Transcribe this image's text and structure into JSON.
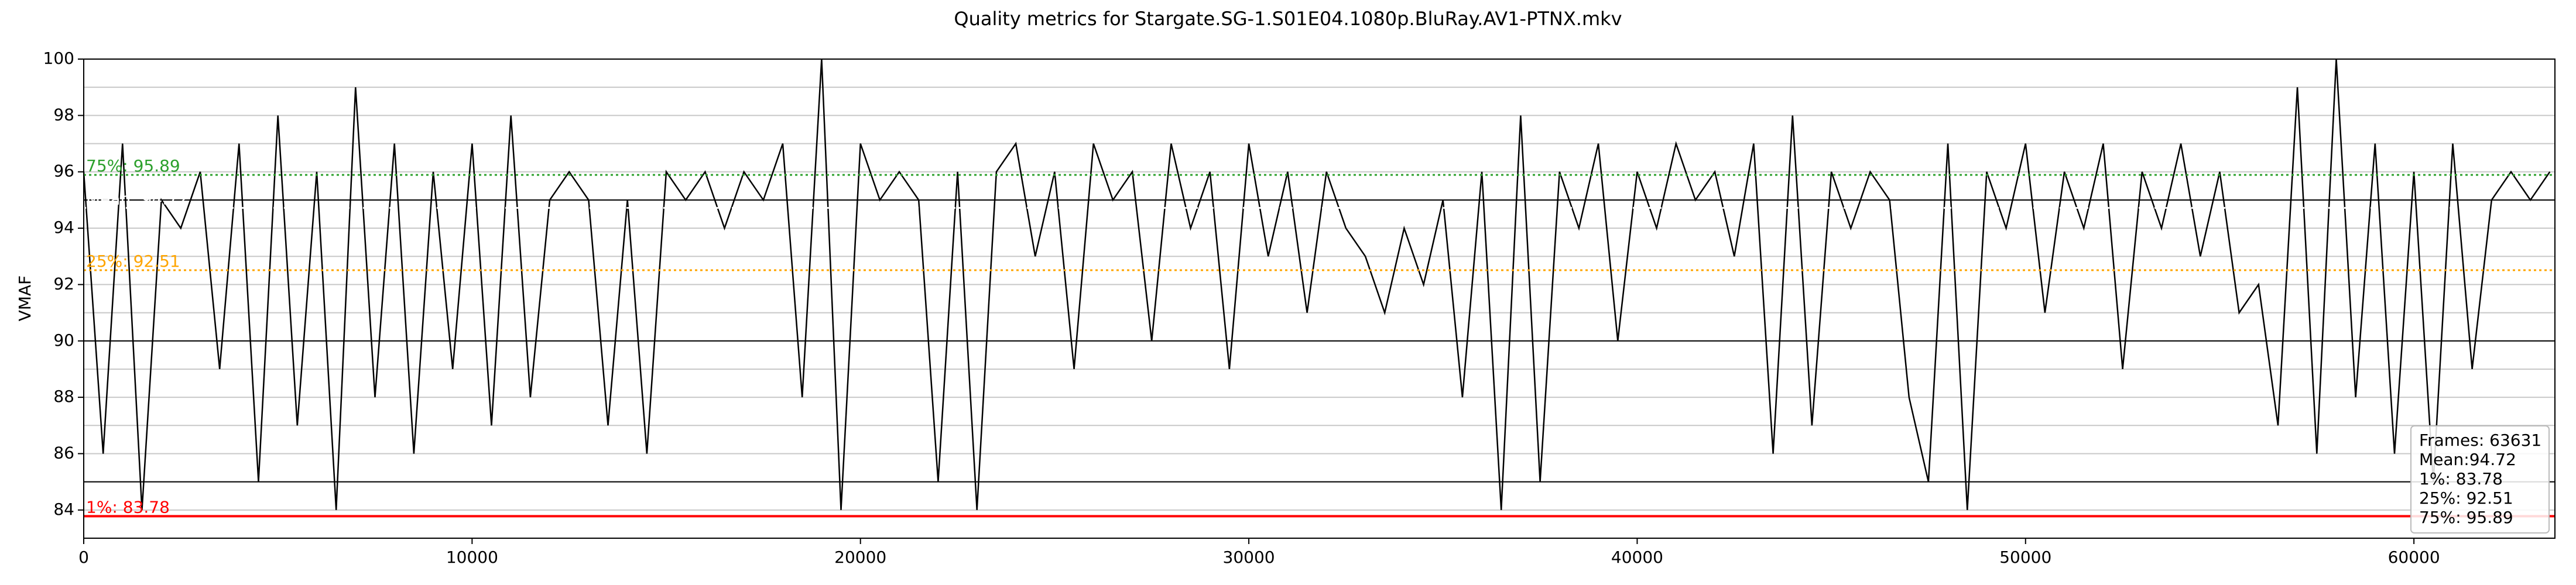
{
  "chart_data": {
    "type": "line",
    "title": "Quality metrics for Stargate.SG-1.S01E04.1080p.BluRay.AV1-PTNX.mkv",
    "y_label": "VMAF",
    "xlim": [
      0,
      63631
    ],
    "ylim": [
      83,
      100
    ],
    "xticks": [
      0,
      10000,
      20000,
      30000,
      40000,
      50000,
      60000
    ],
    "yticks": [
      84,
      86,
      88,
      90,
      92,
      94,
      96,
      98,
      100
    ],
    "minor_yticks": [
      85,
      87,
      89,
      91,
      93,
      95,
      97,
      99
    ],
    "hlines": [
      85,
      90,
      95
    ],
    "grid": true,
    "x": [
      0,
      500,
      1000,
      1500,
      2000,
      2500,
      3000,
      3500,
      4000,
      4500,
      5000,
      5500,
      6000,
      6500,
      7000,
      7500,
      8000,
      8500,
      9000,
      9500,
      10000,
      10500,
      11000,
      11500,
      12000,
      12500,
      13000,
      13500,
      14000,
      14500,
      15000,
      15500,
      16000,
      16500,
      17000,
      17500,
      18000,
      18500,
      19000,
      19500,
      20000,
      20500,
      21000,
      21500,
      22000,
      22500,
      23000,
      23500,
      24000,
      24500,
      25000,
      25500,
      26000,
      26500,
      27000,
      27500,
      28000,
      28500,
      29000,
      29500,
      30000,
      30500,
      31000,
      31500,
      32000,
      32500,
      33000,
      33500,
      34000,
      34500,
      35000,
      35500,
      36000,
      36500,
      37000,
      37500,
      38000,
      38500,
      39000,
      39500,
      40000,
      40500,
      41000,
      41500,
      42000,
      42500,
      43000,
      43500,
      44000,
      44500,
      45000,
      45500,
      46000,
      46500,
      47000,
      47500,
      48000,
      48500,
      49000,
      49500,
      50000,
      50500,
      51000,
      51500,
      52000,
      52500,
      53000,
      53500,
      54000,
      54500,
      55000,
      55500,
      56000,
      56500,
      57000,
      57500,
      58000,
      58500,
      59000,
      59500,
      60000,
      60500,
      61000,
      61500,
      62000,
      62500,
      63000,
      63500
    ],
    "series": [
      {
        "color": "#000000",
        "values": [
          96,
          86,
          97,
          84,
          95,
          94,
          96,
          89,
          97,
          85,
          98,
          87,
          96,
          84,
          99,
          88,
          97,
          86,
          96,
          89,
          97,
          87,
          98,
          88,
          95,
          96,
          95,
          87,
          95,
          86,
          96,
          95,
          96,
          94,
          96,
          95,
          97,
          88,
          100,
          84,
          97,
          95,
          96,
          95,
          85,
          96,
          84,
          96,
          97,
          93,
          96,
          89,
          97,
          95,
          96,
          90,
          97,
          94,
          96,
          89,
          97,
          93,
          96,
          91,
          96,
          94,
          93,
          91,
          94,
          92,
          95,
          88,
          96,
          84,
          98,
          85,
          96,
          94,
          97,
          90,
          96,
          94,
          97,
          95,
          96,
          93,
          97,
          86,
          98,
          87,
          96,
          94,
          96,
          95,
          88,
          85,
          97,
          84,
          96,
          94,
          97,
          91,
          96,
          94,
          97,
          89,
          96,
          94,
          97,
          93,
          96,
          91,
          92,
          87,
          99,
          86,
          100,
          88,
          97,
          86,
          96,
          85,
          97,
          89,
          95,
          96,
          95,
          96
        ]
      }
    ],
    "ref_lines": [
      {
        "label": "75%: 95.89",
        "value": 95.89,
        "color": "#2ca02c",
        "dash": "dotted"
      },
      {
        "label": "Mean: 94.72",
        "value": 94.72,
        "color": "#ffffff",
        "dash": "dotted"
      },
      {
        "label": "25%: 92.51",
        "value": 92.51,
        "color": "#ffa500",
        "dash": "dotted"
      },
      {
        "label": "1%: 83.78",
        "value": 83.78,
        "color": "#ff0000",
        "dash": "solid"
      }
    ],
    "stats_box": [
      "Frames: 63631",
      "Mean:94.72",
      "1%: 83.78",
      "25%: 92.51",
      "75%: 95.89"
    ]
  }
}
